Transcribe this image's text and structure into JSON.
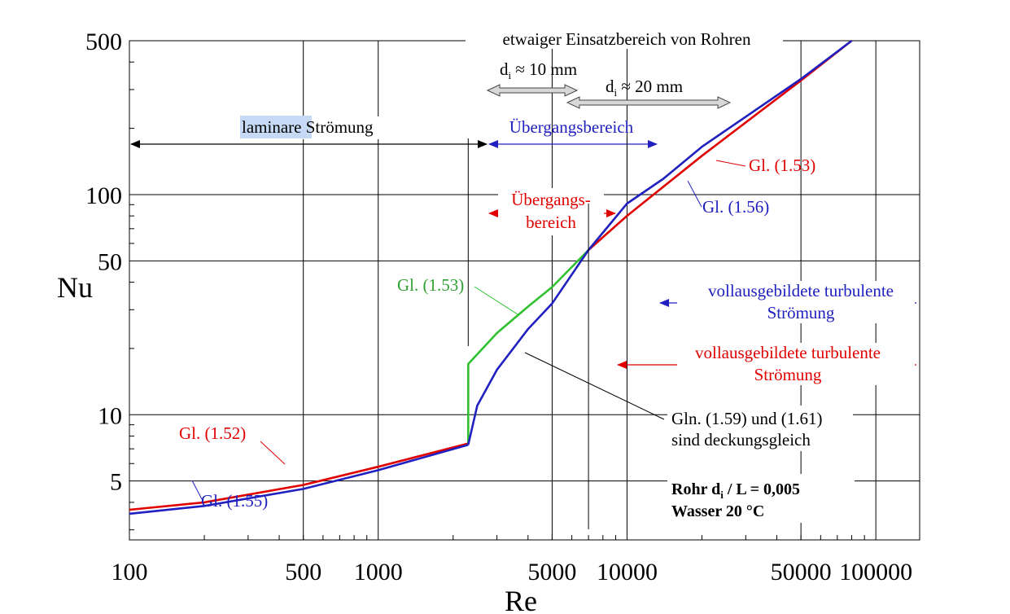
{
  "chart_data": {
    "type": "line",
    "x_scale": "log",
    "y_scale": "log",
    "xlim": [
      100,
      150000
    ],
    "ylim": [
      2.7,
      500
    ],
    "grid": true,
    "xlabel": "Re",
    "ylabel": "Nu",
    "x_ticks": [
      100,
      500,
      1000,
      5000,
      10000,
      50000,
      100000
    ],
    "x_tick_labels": [
      "100",
      "500",
      "1000",
      "5000",
      "10000",
      "50000",
      "100000"
    ],
    "y_ticks": [
      5,
      10,
      50,
      100,
      500
    ],
    "y_tick_labels": [
      "5",
      "10",
      "50",
      "100",
      "500"
    ],
    "series": [
      {
        "name": "Gl. (1.52)",
        "color": "#e00000",
        "points": [
          [
            100,
            3.7
          ],
          [
            200,
            4.0
          ],
          [
            500,
            4.8
          ],
          [
            1000,
            5.8
          ],
          [
            2300,
            7.4
          ]
        ]
      },
      {
        "name": "Gl. (1.55)",
        "color": "#2020c0",
        "points": [
          [
            100,
            3.55
          ],
          [
            200,
            3.85
          ],
          [
            500,
            4.6
          ],
          [
            1000,
            5.6
          ],
          [
            2300,
            7.3
          ]
        ]
      },
      {
        "name": "Gl. (1.53)",
        "color": "#30c030",
        "points": [
          [
            2300,
            7.4
          ],
          [
            2300,
            17.0
          ],
          [
            3000,
            23.5
          ],
          [
            4000,
            31.0
          ],
          [
            5000,
            38.0
          ],
          [
            7000,
            56.0
          ]
        ]
      },
      {
        "name": "Gl. (1.53)",
        "color": "#e00000",
        "points": [
          [
            7000,
            56.0
          ],
          [
            10000,
            80.0
          ],
          [
            20000,
            150.0
          ],
          [
            50000,
            330.0
          ],
          [
            80000,
            500.0
          ]
        ]
      },
      {
        "name": "Gl. (1.56)",
        "color": "#2020c0",
        "points": [
          [
            2300,
            7.3
          ],
          [
            2500,
            11.0
          ],
          [
            3000,
            16.0
          ],
          [
            4000,
            24.5
          ],
          [
            5000,
            32.0
          ],
          [
            7000,
            56.0
          ],
          [
            10000,
            91.0
          ],
          [
            14000,
            118.0
          ],
          [
            20000,
            165.0
          ],
          [
            50000,
            335.0
          ],
          [
            80000,
            500.0
          ]
        ]
      }
    ],
    "ranges": [
      {
        "label": "laminare Strömung",
        "from": 100,
        "to": 2300,
        "color": "#000000"
      },
      {
        "label": "Übergangsbereich",
        "from": 2300,
        "to": 10000,
        "color": "#2020c0"
      },
      {
        "label": "Übergangs-",
        "label2": "bereich",
        "from": 2300,
        "to": 7000,
        "color": "#e00000"
      }
    ],
    "annotations": {
      "top": "etwaiger Einsatzbereich von Rohren",
      "di10": "d",
      "di10_sub": "i",
      "di10_rest": " ≈ 10 mm",
      "di20": "d",
      "di20_sub": "i",
      "di20_rest": " ≈ 20 mm",
      "label_153_red": "Gl. (1.53)",
      "label_156": "Gl. (1.56)",
      "label_153_green": "Gl. (1.53)",
      "label_152": "Gl. (1.52)",
      "label_155": "Gl. (1.55)",
      "turb_blue_1": "vollausgebildete turbulente",
      "turb_blue_2": "Strömung",
      "turb_red_1": "vollausgebildete turbulente",
      "turb_red_2": "Strömung",
      "gln_1": "Gln. (1.59) und (1.61)",
      "gln_2": "sind deckungsgleich",
      "rohr": "Rohr d",
      "rohr_sub": "i",
      "rohr_rest": " / L = 0,005",
      "wasser": "Wasser 20 °C"
    }
  }
}
